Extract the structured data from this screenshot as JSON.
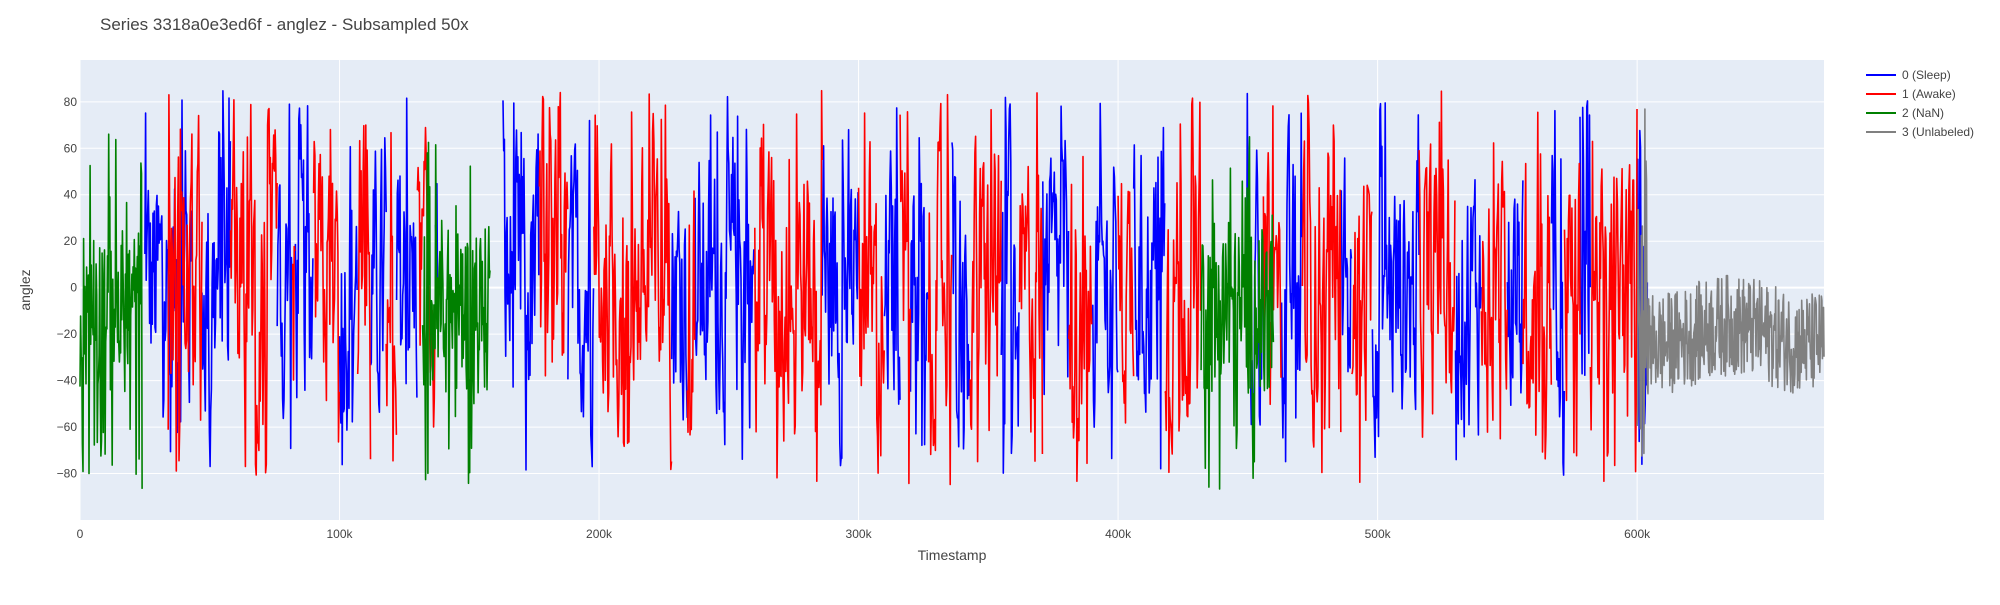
{
  "chart_data": {
    "type": "line",
    "title": "Series 3318a0e3ed6f - anglez - Subsampled 50x",
    "xlabel": "Timestamp",
    "ylabel": "anglez",
    "xlim": [
      0,
      672000
    ],
    "ylim": [
      -100,
      98
    ],
    "x_ticks": [
      0,
      100000,
      200000,
      300000,
      400000,
      500000,
      600000
    ],
    "x_tick_labels": [
      "0",
      "100k",
      "200k",
      "300k",
      "400k",
      "500k",
      "600k"
    ],
    "y_ticks": [
      -80,
      -60,
      -40,
      -20,
      0,
      20,
      40,
      60,
      80
    ],
    "y_tick_labels": [
      "−80",
      "−60",
      "−40",
      "−20",
      "0",
      "20",
      "40",
      "60",
      "80"
    ],
    "grid": true,
    "legend_position": "top-right",
    "series": [
      {
        "name": "0 (Sleep)",
        "color": "#0000ff",
        "segments": [
          [
            25000,
            43000
          ],
          [
            47000,
            58000
          ],
          [
            76000,
            82000
          ],
          [
            83000,
            90000
          ],
          [
            100000,
            107000
          ],
          [
            112000,
            118000
          ],
          [
            122000,
            130000
          ],
          [
            137000,
            138000
          ],
          [
            163000,
            177000
          ],
          [
            188000,
            198000
          ],
          [
            228000,
            234000
          ],
          [
            237000,
            260000
          ],
          [
            286000,
            300000
          ],
          [
            310000,
            316000
          ],
          [
            320000,
            327000
          ],
          [
            336000,
            343000
          ],
          [
            355000,
            362000
          ],
          [
            371000,
            381000
          ],
          [
            390000,
            400000
          ],
          [
            406000,
            418000
          ],
          [
            449000,
            456000
          ],
          [
            463000,
            471000
          ],
          [
            486000,
            490000
          ],
          [
            498000,
            516000
          ],
          [
            530000,
            540000
          ],
          [
            550000,
            556000
          ],
          [
            567000,
            572000
          ],
          [
            578000,
            582000
          ],
          [
            600000,
            604000
          ]
        ],
        "amplitude": 85
      },
      {
        "name": "1 (Awake)",
        "color": "#ff0000",
        "segments": [
          [
            34000,
            47000
          ],
          [
            58000,
            76000
          ],
          [
            82000,
            83000
          ],
          [
            90000,
            100000
          ],
          [
            107000,
            112000
          ],
          [
            118000,
            122000
          ],
          [
            130000,
            137000
          ],
          [
            177000,
            188000
          ],
          [
            198000,
            228000
          ],
          [
            234000,
            237000
          ],
          [
            260000,
            286000
          ],
          [
            300000,
            310000
          ],
          [
            316000,
            320000
          ],
          [
            327000,
            336000
          ],
          [
            343000,
            355000
          ],
          [
            362000,
            371000
          ],
          [
            381000,
            390000
          ],
          [
            400000,
            406000
          ],
          [
            418000,
            432000
          ],
          [
            456000,
            463000
          ],
          [
            471000,
            486000
          ],
          [
            490000,
            498000
          ],
          [
            516000,
            530000
          ],
          [
            540000,
            550000
          ],
          [
            556000,
            567000
          ],
          [
            572000,
            578000
          ],
          [
            582000,
            600000
          ]
        ],
        "amplitude": 85
      },
      {
        "name": "2 (NaN)",
        "color": "#008000",
        "segments": [
          [
            0,
            24000
          ],
          [
            132000,
            158000
          ],
          [
            432000,
            460000
          ]
        ],
        "amplitude": 60
      },
      {
        "name": "3 (Unlabeled)",
        "color": "#808080",
        "segments": [
          [
            600000,
            672000
          ]
        ],
        "amplitude": 22
      }
    ]
  }
}
